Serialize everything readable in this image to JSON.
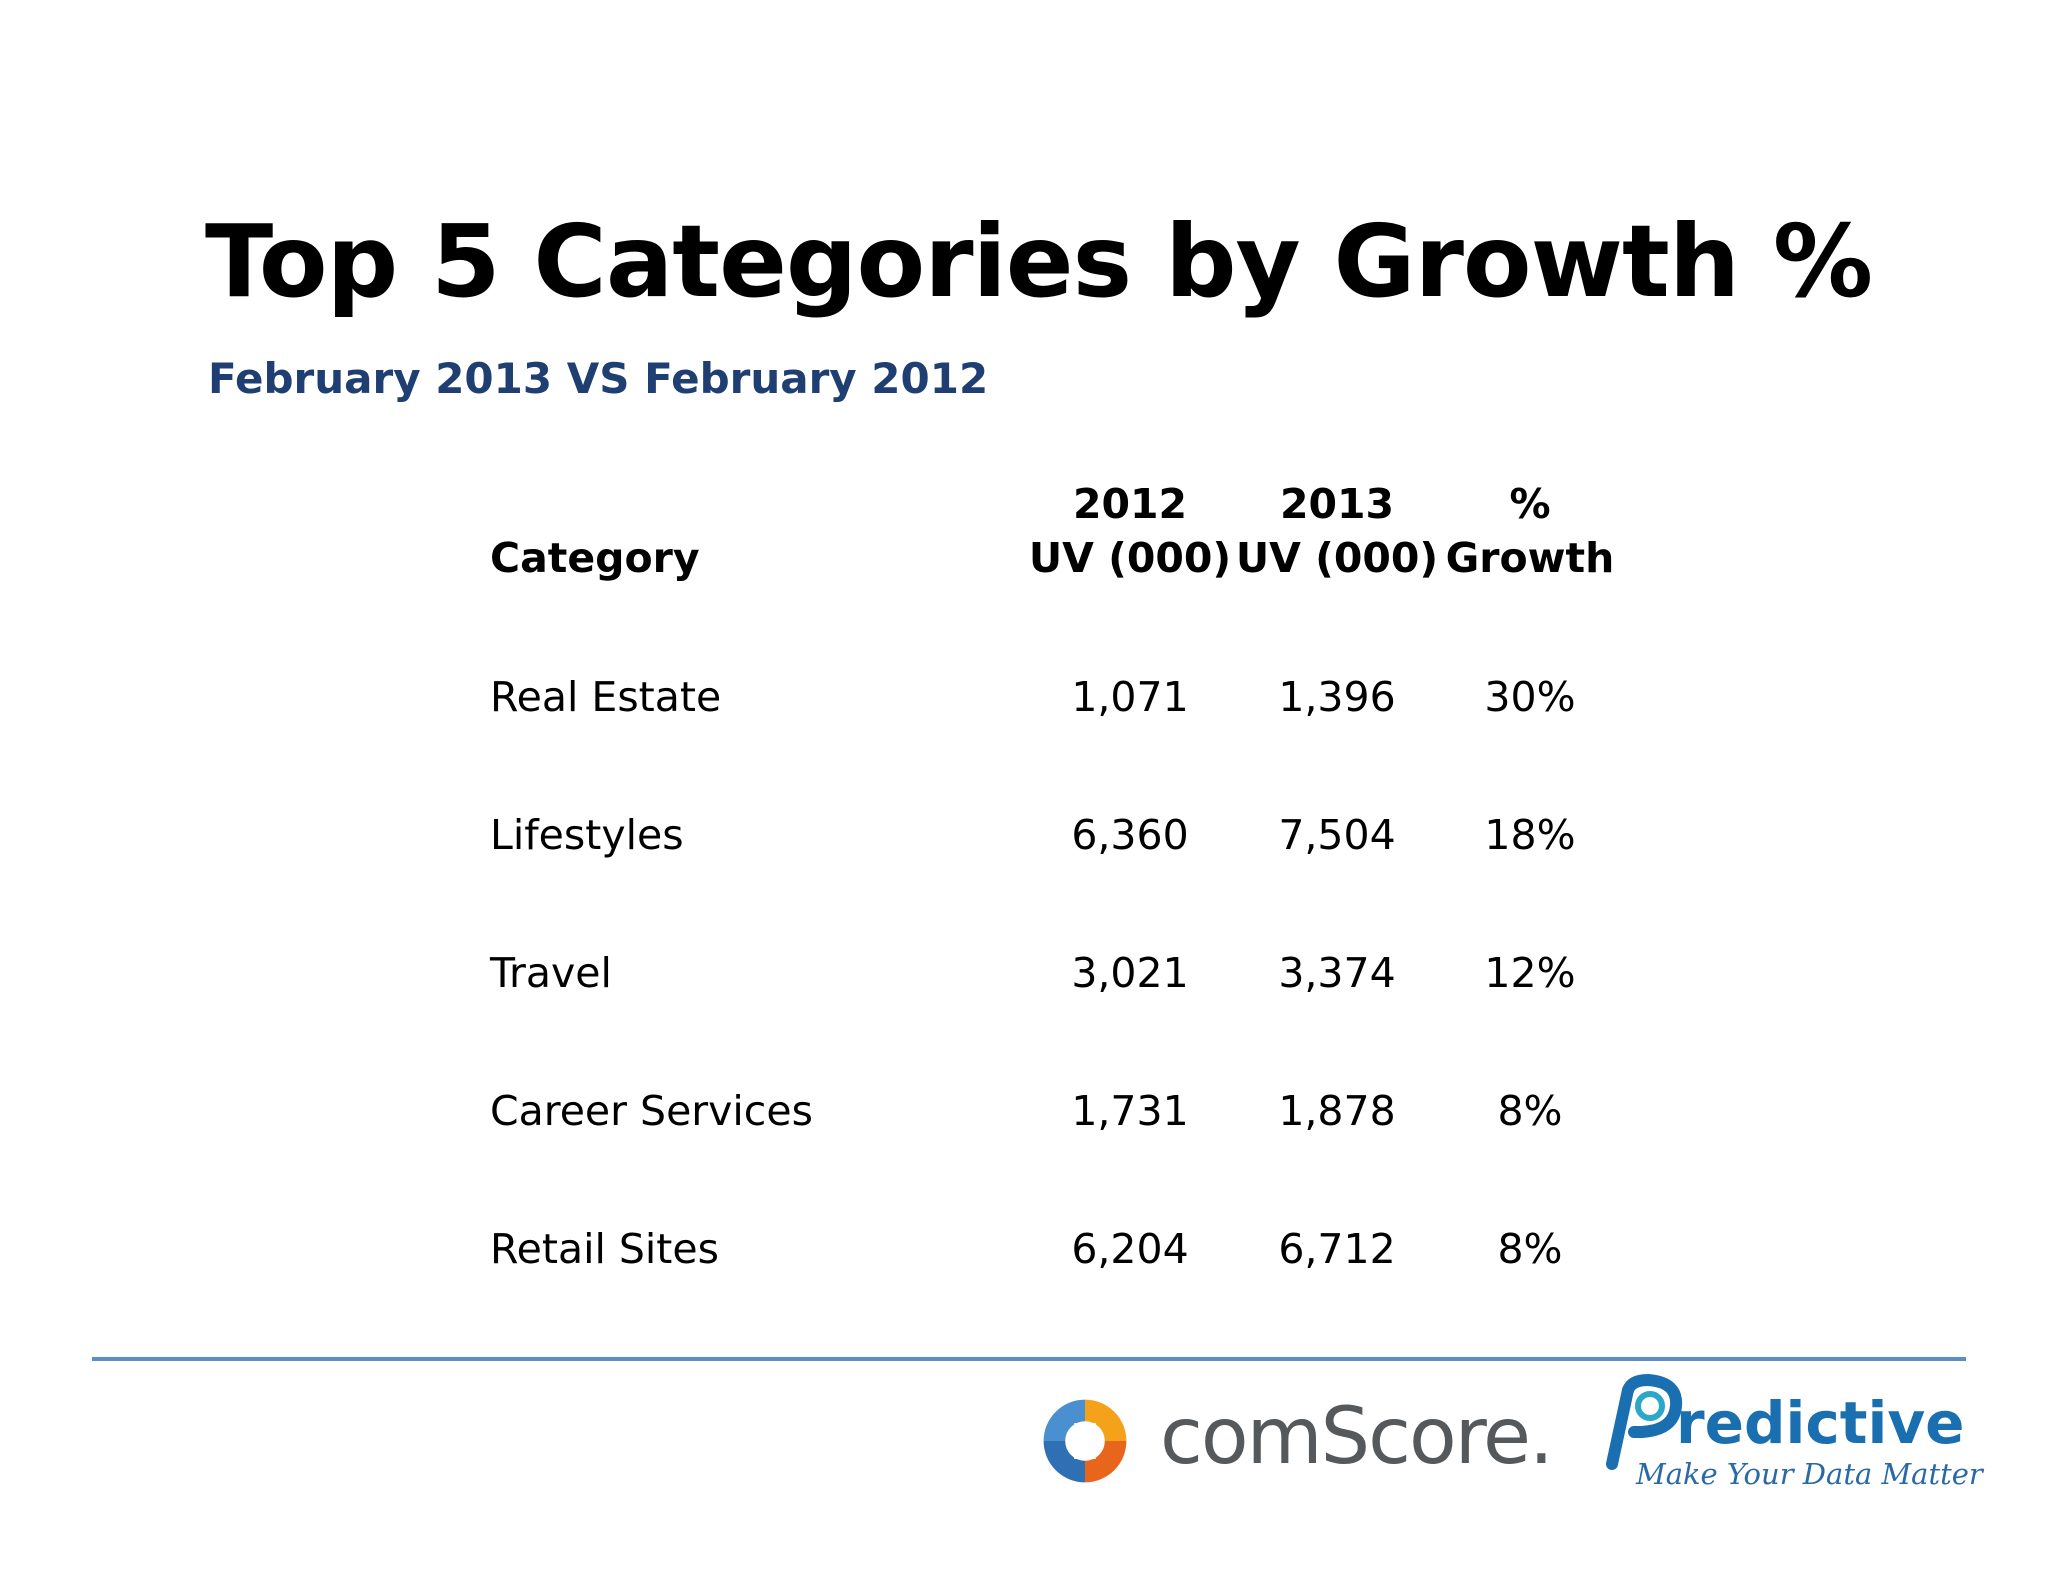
{
  "slide": {
    "title": "Top 5 Categories by Growth %",
    "subtitle": "February 2013 VS February 2012"
  },
  "table": {
    "headers": {
      "category": "Category",
      "col1_line1": "2012",
      "col1_line2": "UV (000)",
      "col2_line1": "2013",
      "col2_line2": "UV (000)",
      "col3_line1": "%",
      "col3_line2": "Growth"
    },
    "rows": [
      {
        "category": "Real Estate",
        "uv_2012": "1,071",
        "uv_2013": "1,396",
        "growth": "30%"
      },
      {
        "category": "Lifestyles",
        "uv_2012": "6,360",
        "uv_2013": "7,504",
        "growth": "18%"
      },
      {
        "category": "Travel",
        "uv_2012": "3,021",
        "uv_2013": "3,374",
        "growth": "12%"
      },
      {
        "category": "Career Services",
        "uv_2012": "1,731",
        "uv_2013": "1,878",
        "growth": "8%"
      },
      {
        "category": "Retail Sites",
        "uv_2012": "6,204",
        "uv_2013": "6,712",
        "growth": "8%"
      }
    ]
  },
  "footer": {
    "logo_comscore": "comScore.",
    "logo_predictive": "Predictive",
    "predictive_tagline": "Make Your Data Matter"
  },
  "colors": {
    "subtitle": "#1f3f73",
    "divider": "#5b8ec6",
    "predictive_blue": "#1a6fb0"
  }
}
